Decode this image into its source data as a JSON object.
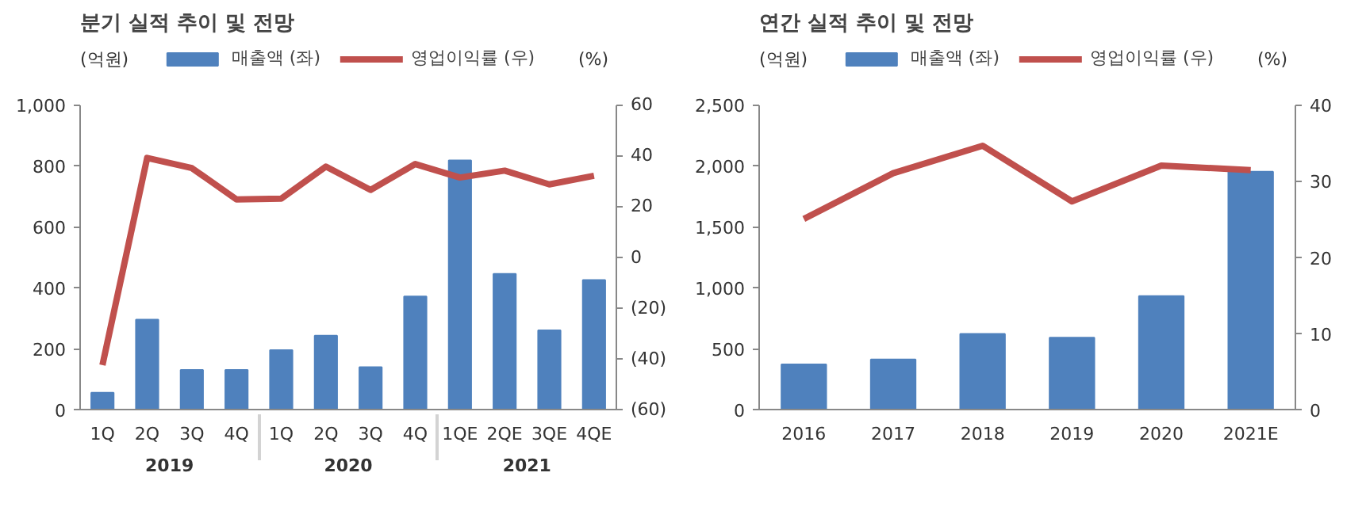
{
  "chart_data": [
    {
      "type": "bar",
      "title": "분기 실적 추이 및 전망",
      "ylabel": "(억원)",
      "y2label": "(%)",
      "categories": [
        "1Q",
        "2Q",
        "3Q",
        "4Q",
        "1Q",
        "2Q",
        "3Q",
        "4Q",
        "1QE",
        "2QE",
        "3QE",
        "4QE"
      ],
      "annotations": [
        "2019",
        "2020",
        "2021"
      ],
      "series": [
        {
          "name": "매출액 (좌)",
          "color": "#4f81bd",
          "values": [
            55,
            295,
            130,
            130,
            195,
            242,
            139,
            371,
            817,
            445,
            260,
            425
          ]
        },
        {
          "name": "영업이익률 (우)",
          "type": "line",
          "axis": "y2",
          "color": "#c0504d",
          "values": [
            -42.5,
            39,
            35,
            22.7,
            23,
            35.6,
            26.4,
            36.6,
            31.3,
            34,
            28.6,
            32
          ]
        }
      ],
      "ylim": [
        0,
        1000
      ],
      "yticks": [
        0,
        200,
        400,
        600,
        800,
        {
          "value": 1000,
          "label": "1,000"
        }
      ],
      "y2lim": [
        -60,
        60
      ],
      "y2ticks": [
        {
          "value": -60,
          "label": "(60)"
        },
        {
          "value": -40,
          "label": "(40)"
        },
        {
          "value": -20,
          "label": "(20)"
        },
        0,
        20,
        40,
        60
      ],
      "grid": false,
      "legend": "top",
      "marker": "none"
    },
    {
      "type": "bar",
      "title": "연간 실적 추이 및 전망",
      "ylabel": "(억원)",
      "y2label": "(%)",
      "categories": [
        "2016",
        "2017",
        "2018",
        "2019",
        "2020",
        "2021E"
      ],
      "series": [
        {
          "name": "매출액 (좌)",
          "color": "#4f81bd",
          "values": [
            370,
            410,
            620,
            590,
            930,
            1950
          ]
        },
        {
          "name": "영업이익률 (우)",
          "type": "line",
          "axis": "y2",
          "color": "#c0504d",
          "values": [
            25,
            31,
            34.6,
            27.3,
            32,
            31.4
          ]
        }
      ],
      "ylim": [
        0,
        2500
      ],
      "yticks": [
        0,
        500,
        {
          "value": 1000,
          "label": "1,000"
        },
        {
          "value": 1500,
          "label": "1,500"
        },
        {
          "value": 2000,
          "label": "2,000"
        },
        {
          "value": 2500,
          "label": "2,500"
        }
      ],
      "y2lim": [
        0,
        40
      ],
      "y2ticks": [
        0,
        10,
        20,
        30,
        40
      ],
      "grid": false,
      "legend": "top",
      "marker": "none"
    }
  ]
}
